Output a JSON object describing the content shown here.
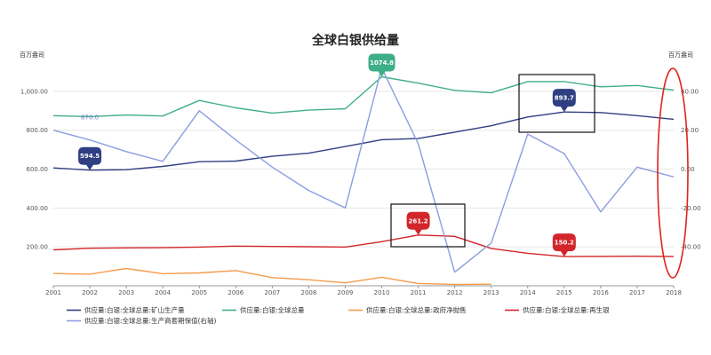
{
  "chart_data": {
    "type": "line",
    "title": "全球白银供给量",
    "y_left_unit": "百万盎司",
    "y_right_unit": "百万盎司",
    "x": [
      "2001",
      "2002",
      "2003",
      "2004",
      "2005",
      "2006",
      "2007",
      "2008",
      "2009",
      "2010",
      "2011",
      "2012",
      "2013",
      "2014",
      "2015",
      "2016",
      "2017",
      "2018"
    ],
    "y_left_ticks": [
      "200.00",
      "400.00",
      "600.00",
      "800.00",
      "1,000.00"
    ],
    "y_right_ticks": [
      "-40.00",
      "-20.00",
      "0.00",
      "20.00",
      "40.00"
    ],
    "ylim_left": [
      0,
      1150
    ],
    "ylim_right": [
      -60,
      55
    ],
    "grid": true,
    "legend_position": "bottom",
    "series": [
      {
        "name": "供应量:白银:全球总量:矿山生产量",
        "color": "#2f3f82",
        "axis": "left",
        "values": [
          606,
          594.5,
          597,
          614,
          638,
          641,
          666,
          682,
          716,
          751,
          757,
          790,
          823,
          868,
          893.7,
          891,
          875,
          856
        ]
      },
      {
        "name": "供应量:白银:全球总量",
        "color": "#3fae8a",
        "axis": "left",
        "values": [
          875,
          870,
          878,
          873,
          953,
          915,
          888,
          903,
          910,
          1074.8,
          1042,
          1005,
          992,
          1050,
          1050,
          1023,
          1030,
          1006
        ]
      },
      {
        "name": "供应量:白银:全球总量:政府净抛售",
        "color": "#f39c4a",
        "axis": "left",
        "values": [
          63,
          60,
          89,
          62,
          66,
          78,
          42,
          31,
          15,
          44,
          12,
          7,
          8,
          null,
          null,
          null,
          null,
          null
        ]
      },
      {
        "name": "供应量:白银:全球总量:再生银",
        "color": "#d2262b",
        "axis": "left",
        "values": [
          185,
          193,
          195,
          196,
          199,
          204,
          202,
          201,
          199,
          227,
          261.2,
          254,
          192,
          167,
          150.2,
          151,
          152,
          150
        ]
      },
      {
        "name": "供应量:白银:全球总量:生产商套期保值(右轴)",
        "color": "#8b9ee0",
        "axis": "right",
        "values": [
          20,
          15,
          9,
          4,
          30,
          15,
          1,
          -11,
          -20,
          52,
          13,
          -53,
          -38,
          18,
          8,
          -22,
          1,
          -4
        ]
      }
    ],
    "annotations": [
      {
        "series": 0,
        "x": "2002",
        "label": "594.5"
      },
      {
        "series": 0,
        "x": "2015",
        "label": "893.7"
      },
      {
        "series": 1,
        "x": "2010",
        "label": "1074.8"
      },
      {
        "series": 3,
        "x": "2011",
        "label": "261.2"
      },
      {
        "series": 3,
        "x": "2015",
        "label": "150.2"
      },
      {
        "series": 1,
        "x": "2002",
        "label": "870.0"
      }
    ]
  }
}
